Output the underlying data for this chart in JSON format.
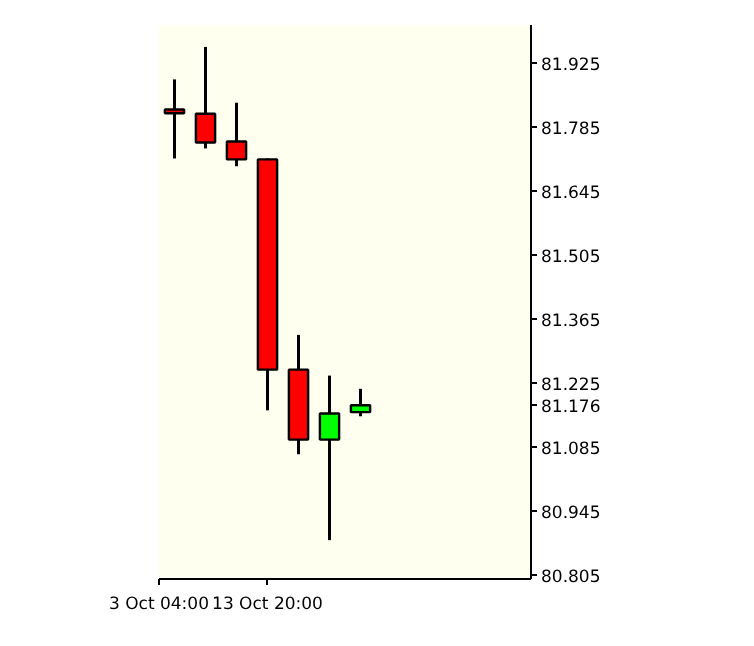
{
  "chart_data": {
    "type": "candlestick",
    "categories": [
      null,
      null,
      null,
      "13 Oct 20:00",
      null,
      null,
      null,
      null,
      null,
      null,
      null,
      null
    ],
    "ohlc": [
      [
        81.823,
        81.889,
        81.716,
        81.815
      ],
      [
        81.814,
        81.96,
        81.738,
        81.751
      ],
      [
        81.753,
        81.838,
        81.699,
        81.714
      ],
      [
        81.714,
        81.716,
        81.165,
        81.254
      ],
      [
        81.254,
        81.33,
        81.069,
        81.101
      ],
      [
        81.101,
        81.241,
        80.881,
        81.158
      ],
      [
        81.161,
        81.212,
        81.152,
        81.176
      ],
      null,
      null,
      null,
      null,
      null
    ],
    "colors": [
      "#ff0000",
      "#ff0000",
      "#ff0000",
      "#ff0000",
      "#ff0000",
      "#00ff00",
      "#00ff00",
      null,
      null,
      null,
      null,
      null
    ],
    "ylim": [
      80.796,
      82.008
    ],
    "yticks": [
      {
        "value": 80.805,
        "label": "80.805"
      },
      {
        "value": 80.945,
        "label": "80.945"
      },
      {
        "value": 81.085,
        "label": "81.085"
      },
      {
        "value": 81.176,
        "label": "81.176"
      },
      {
        "value": 81.225,
        "label": "81.225"
      },
      {
        "value": 81.365,
        "label": "81.365"
      },
      {
        "value": 81.505,
        "label": "81.505"
      },
      {
        "value": 81.645,
        "label": "81.645"
      },
      {
        "value": 81.785,
        "label": "81.785"
      },
      {
        "value": 81.925,
        "label": "81.925"
      }
    ],
    "annotations": [
      "3 Oct 04:00"
    ],
    "grid": false
  }
}
